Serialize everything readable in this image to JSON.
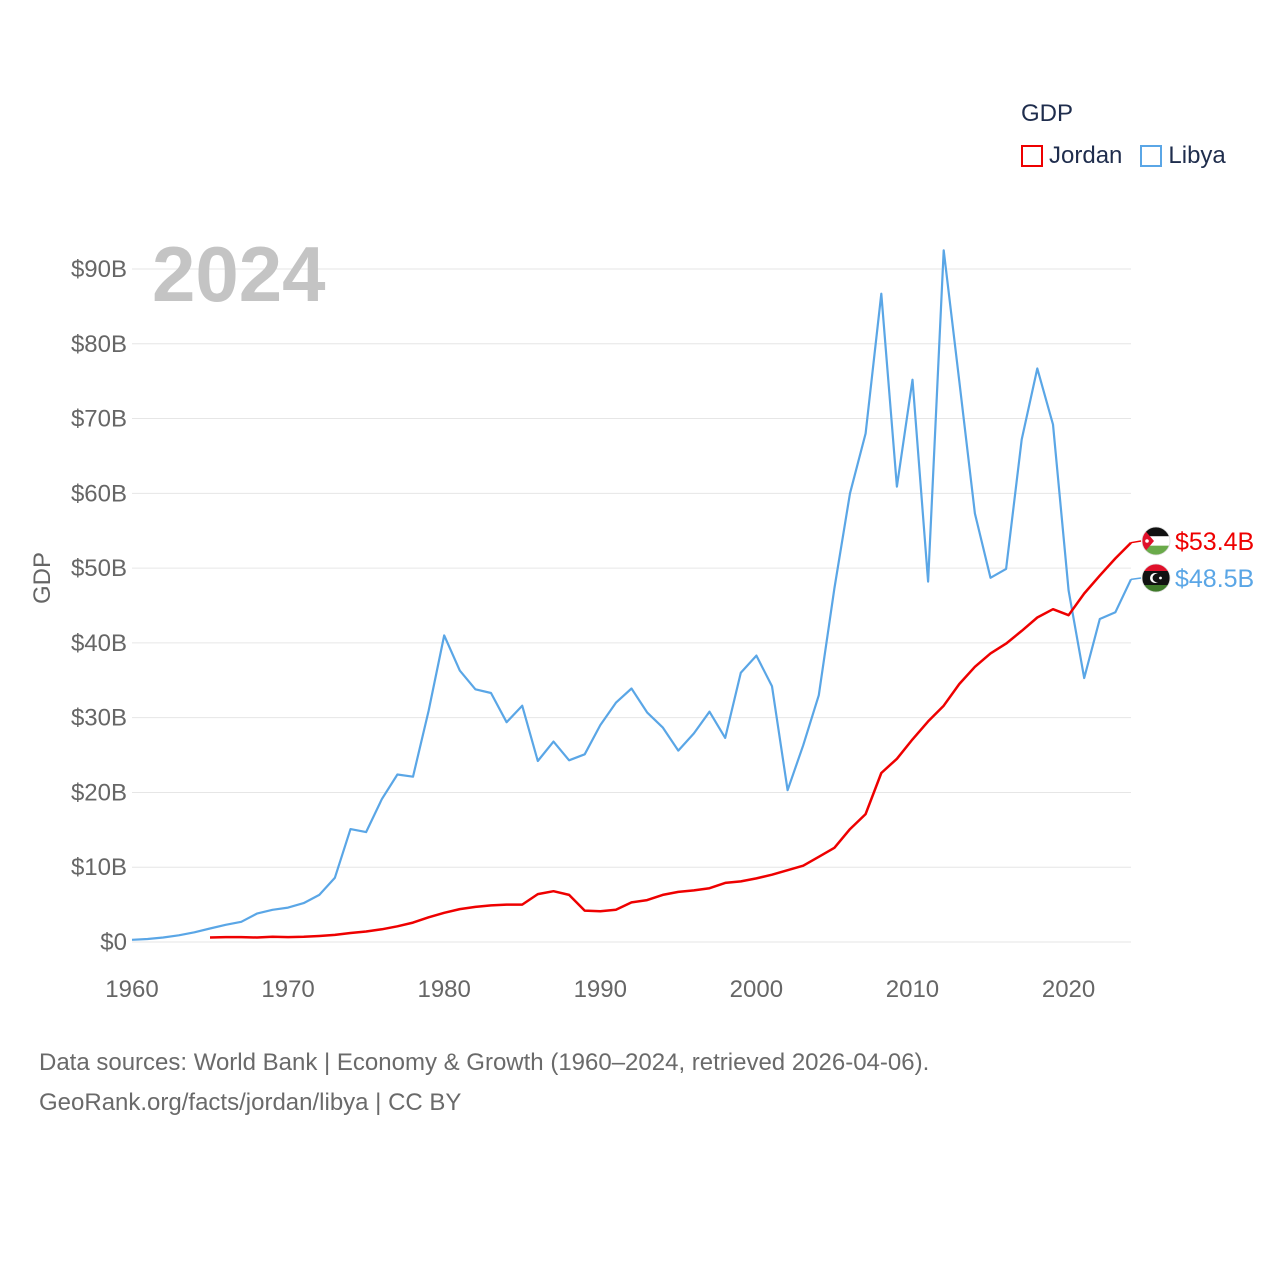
{
  "legend": {
    "title": "GDP",
    "items": [
      {
        "name": "Jordan",
        "color": "#ee0000"
      },
      {
        "name": "Libya",
        "color": "#5aa6e6"
      }
    ]
  },
  "footer": {
    "line1": "Data sources: World Bank | Economy & Growth (1960–2024, retrieved 2026-04-06).",
    "line2": "GeoRank.org/facts/jordan/libya | CC BY"
  },
  "chart_data": {
    "type": "line",
    "title": "GDP",
    "year_label": "2024",
    "xlabel": "",
    "ylabel": "GDP",
    "xlim": [
      1960,
      2024
    ],
    "ylim": [
      0,
      90
    ],
    "y_unit": "billion USD",
    "x_ticks": [
      1960,
      1970,
      1980,
      1990,
      2000,
      2010,
      2020
    ],
    "y_ticks": [
      0,
      10,
      20,
      30,
      40,
      50,
      60,
      70,
      80,
      90
    ],
    "y_tick_labels": [
      "$0",
      "$10B",
      "$20B",
      "$30B",
      "$40B",
      "$50B",
      "$60B",
      "$70B",
      "$80B",
      "$90B"
    ],
    "series": [
      {
        "name": "Jordan",
        "color": "#ee0000",
        "end_label": "$53.4B",
        "flag": "jordan-flag-icon",
        "x": [
          1965,
          1966,
          1967,
          1968,
          1969,
          1970,
          1971,
          1972,
          1973,
          1974,
          1975,
          1976,
          1977,
          1978,
          1979,
          1980,
          1981,
          1982,
          1983,
          1984,
          1985,
          1986,
          1987,
          1988,
          1989,
          1990,
          1991,
          1992,
          1993,
          1994,
          1995,
          1996,
          1997,
          1998,
          1999,
          2000,
          2001,
          2002,
          2003,
          2004,
          2005,
          2006,
          2007,
          2008,
          2009,
          2010,
          2011,
          2012,
          2013,
          2014,
          2015,
          2016,
          2017,
          2018,
          2019,
          2020,
          2021,
          2022,
          2023,
          2024
        ],
        "values": [
          0.6,
          0.65,
          0.65,
          0.6,
          0.7,
          0.65,
          0.7,
          0.8,
          0.95,
          1.2,
          1.4,
          1.7,
          2.1,
          2.6,
          3.3,
          3.9,
          4.4,
          4.7,
          4.9,
          5.0,
          5.0,
          6.4,
          6.8,
          6.3,
          4.2,
          4.1,
          4.3,
          5.3,
          5.6,
          6.3,
          6.7,
          6.9,
          7.2,
          7.9,
          8.1,
          8.5,
          9.0,
          9.6,
          10.2,
          11.4,
          12.6,
          15.1,
          17.1,
          22.6,
          24.5,
          27.1,
          29.5,
          31.6,
          34.5,
          36.8,
          38.6,
          39.9,
          41.6,
          43.4,
          44.5,
          43.7,
          46.6,
          49.0,
          51.3,
          53.4
        ]
      },
      {
        "name": "Libya",
        "color": "#5aa6e6",
        "end_label": "$48.5B",
        "flag": "libya-flag-icon",
        "x": [
          1960,
          1961,
          1962,
          1963,
          1964,
          1965,
          1966,
          1967,
          1968,
          1969,
          1970,
          1971,
          1972,
          1973,
          1974,
          1975,
          1976,
          1977,
          1978,
          1979,
          1980,
          1981,
          1982,
          1983,
          1984,
          1985,
          1986,
          1987,
          1988,
          1989,
          1990,
          1991,
          1992,
          1993,
          1994,
          1995,
          1996,
          1997,
          1998,
          1999,
          2000,
          2001,
          2002,
          2003,
          2004,
          2005,
          2006,
          2007,
          2008,
          2009,
          2010,
          2011,
          2012,
          2013,
          2014,
          2015,
          2016,
          2017,
          2018,
          2019,
          2020,
          2021,
          2022,
          2023,
          2024
        ],
        "values": [
          0.3,
          0.4,
          0.6,
          0.9,
          1.3,
          1.8,
          2.3,
          2.7,
          3.8,
          4.3,
          4.6,
          5.2,
          6.3,
          8.6,
          15.1,
          14.7,
          19.1,
          22.4,
          22.1,
          30.9,
          41.0,
          36.3,
          33.8,
          33.3,
          29.4,
          31.6,
          24.2,
          26.8,
          24.3,
          25.1,
          29.0,
          32.0,
          33.9,
          30.7,
          28.7,
          25.6,
          27.9,
          30.8,
          27.3,
          36.0,
          38.3,
          34.2,
          20.3,
          26.3,
          33.0,
          47.3,
          60.0,
          68.0,
          86.7,
          60.9,
          75.2,
          48.2,
          92.5,
          75.0,
          57.3,
          48.7,
          49.9,
          67.2,
          76.7,
          69.2,
          47.0,
          35.3,
          43.2,
          44.1,
          48.5
        ]
      }
    ]
  }
}
